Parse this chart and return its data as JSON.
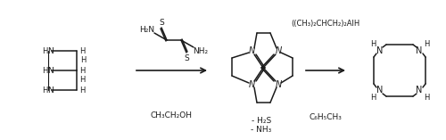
{
  "bg_color": "#ffffff",
  "line_color": "#1a1a1a",
  "fig_width": 5.0,
  "fig_height": 1.57,
  "dpi": 100,
  "reagent1_solvent": "CH₃CH₂OH",
  "reagent2_line1": "((CH₃)₂CHCH₂)₂AlH",
  "reagent2_line2": "C₆H₅CH₃",
  "byproduct1": "- H₂S",
  "byproduct2": "- NH₃"
}
